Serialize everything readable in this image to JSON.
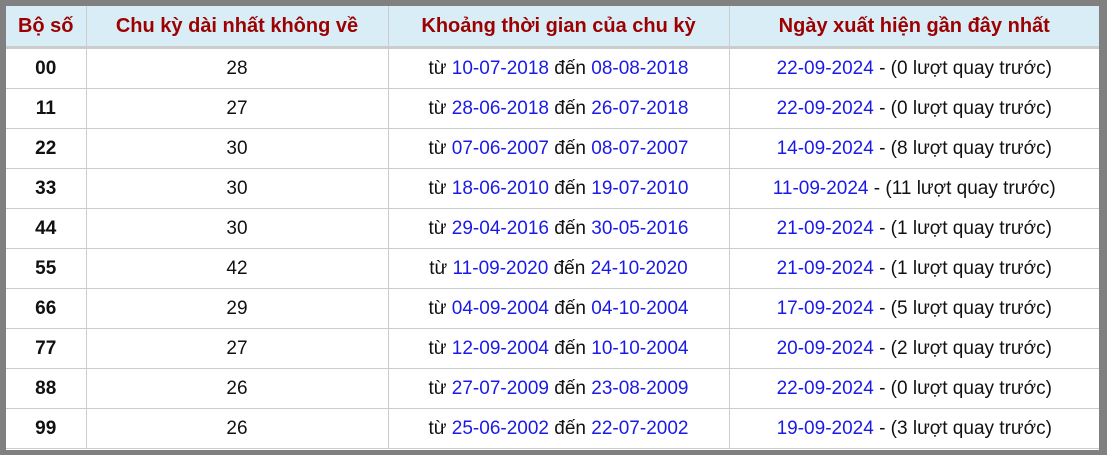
{
  "table": {
    "headers": [
      "Bộ số",
      "Chu kỳ dài nhất không về",
      "Khoảng thời gian của chu kỳ",
      "Ngày xuất hiện gần đây nhất"
    ],
    "from_word": "từ",
    "to_word": "đến",
    "rows": [
      {
        "number": "00",
        "cycle": "28",
        "start": "10-07-2018",
        "end": "08-08-2018",
        "last_date": "22-09-2024",
        "last_note": " - (0 lượt quay trước)"
      },
      {
        "number": "11",
        "cycle": "27",
        "start": "28-06-2018",
        "end": "26-07-2018",
        "last_date": "22-09-2024",
        "last_note": " - (0 lượt quay trước)"
      },
      {
        "number": "22",
        "cycle": "30",
        "start": "07-06-2007",
        "end": "08-07-2007",
        "last_date": "14-09-2024",
        "last_note": " - (8 lượt quay trước)"
      },
      {
        "number": "33",
        "cycle": "30",
        "start": "18-06-2010",
        "end": "19-07-2010",
        "last_date": "11-09-2024",
        "last_note": " - (11 lượt quay trước)"
      },
      {
        "number": "44",
        "cycle": "30",
        "start": "29-04-2016",
        "end": "30-05-2016",
        "last_date": "21-09-2024",
        "last_note": " - (1 lượt quay trước)"
      },
      {
        "number": "55",
        "cycle": "42",
        "start": "11-09-2020",
        "end": "24-10-2020",
        "last_date": "21-09-2024",
        "last_note": " - (1 lượt quay trước)"
      },
      {
        "number": "66",
        "cycle": "29",
        "start": "04-09-2004",
        "end": "04-10-2004",
        "last_date": "17-09-2024",
        "last_note": " - (5 lượt quay trước)"
      },
      {
        "number": "77",
        "cycle": "27",
        "start": "12-09-2004",
        "end": "10-10-2004",
        "last_date": "20-09-2024",
        "last_note": " - (2 lượt quay trước)"
      },
      {
        "number": "88",
        "cycle": "26",
        "start": "27-07-2009",
        "end": "23-08-2009",
        "last_date": "22-09-2024",
        "last_note": " - (0 lượt quay trước)"
      },
      {
        "number": "99",
        "cycle": "26",
        "start": "25-06-2002",
        "end": "22-07-2002",
        "last_date": "19-09-2024",
        "last_note": " - (3 lượt quay trước)"
      }
    ]
  },
  "colors": {
    "header_text": "#9c0000",
    "header_bg": "#d9edf7",
    "link": "#1a1ae6",
    "frame": "#808080"
  }
}
